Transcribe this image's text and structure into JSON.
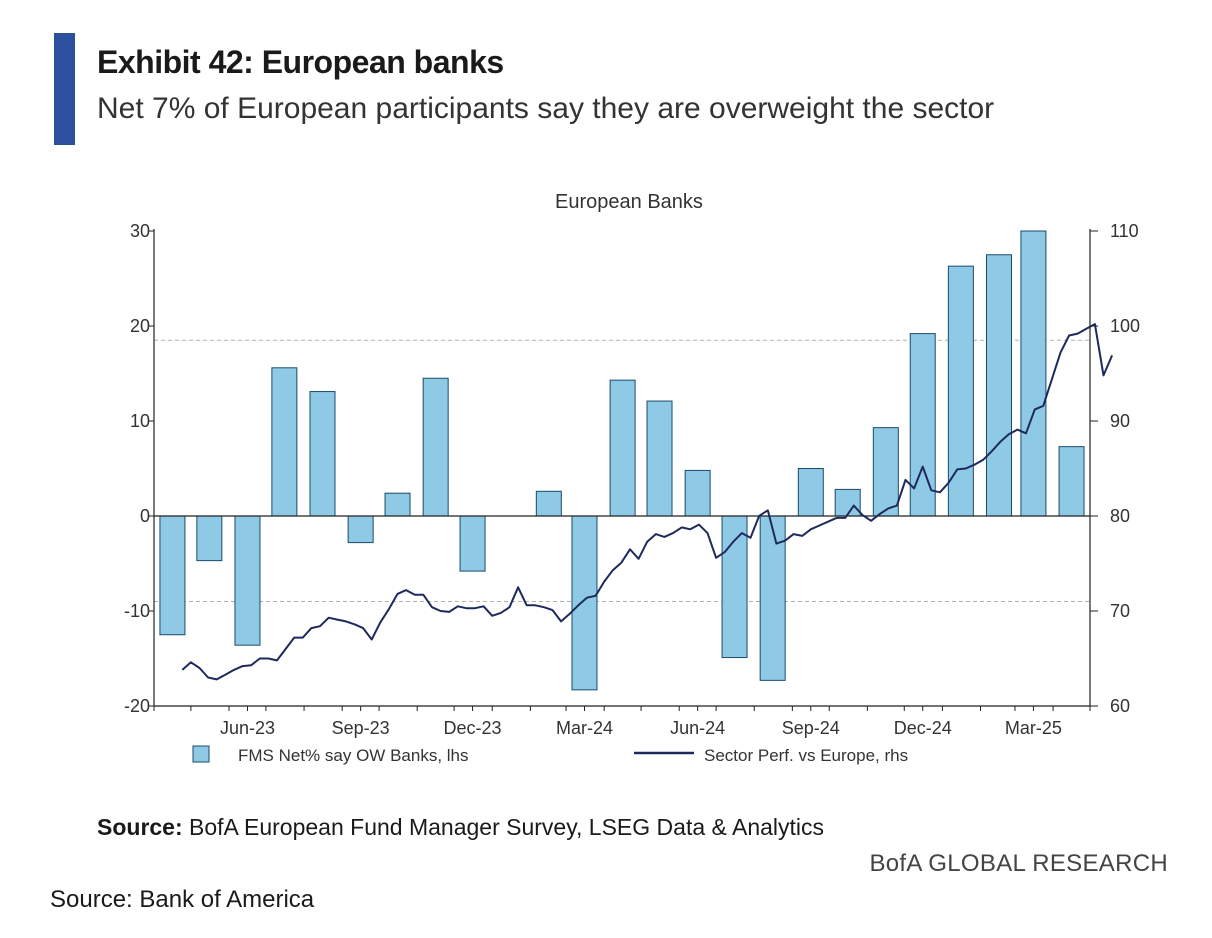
{
  "exhibit": {
    "title": "Exhibit 42: European banks",
    "subtitle": "Net 7% of European participants say they are overweight the sector"
  },
  "source": {
    "label": "Source:",
    "text": "BofA European Fund Manager Survey, LSEG Data & Analytics"
  },
  "brand": "BofA GLOBAL RESEARCH",
  "bottom_source": "Source: Bank of America",
  "colors": {
    "bar_fill": "#8ecae6",
    "bar_stroke": "#1b4a6b",
    "line": "#1f2a5c",
    "axis": "#222222",
    "reference": "#b0b0b0",
    "accent": "#2c4f9e"
  },
  "chart_data": {
    "type": "bar+line",
    "title": "European Banks",
    "x_tick_labels": [
      "Jun-23",
      "Sep-23",
      "Dec-23",
      "Mar-24",
      "Jun-24",
      "Sep-24",
      "Dec-24",
      "Mar-25"
    ],
    "left_axis": {
      "ylim": [
        -20,
        30
      ],
      "ticks": [
        -20,
        -10,
        0,
        10,
        20,
        30
      ],
      "tick_labels": [
        "-20",
        "-10",
        "0",
        "10",
        "20",
        "30"
      ]
    },
    "right_axis": {
      "ylim": [
        60,
        110
      ],
      "ticks": [
        60,
        70,
        80,
        90,
        100,
        110
      ],
      "tick_labels": [
        "60",
        "70",
        "80",
        "90",
        "100",
        "110"
      ]
    },
    "reference_lines_lhs": [
      18.5,
      -9.0
    ],
    "grid": false,
    "legend_position": "bottom",
    "bars": {
      "name": "FMS Net% say OW Banks, lhs",
      "axis": "left",
      "dates": [
        "2023-04",
        "2023-05",
        "2023-06",
        "2023-07",
        "2023-08",
        "2023-09",
        "2023-10",
        "2023-11",
        "2023-12",
        "2024-01",
        "2024-02",
        "2024-03",
        "2024-04",
        "2024-05",
        "2024-06",
        "2024-07",
        "2024-08",
        "2024-09",
        "2024-10",
        "2024-11",
        "2024-12",
        "2025-01",
        "2025-02",
        "2025-03",
        "2025-04"
      ],
      "values": [
        -12.5,
        -4.7,
        -13.6,
        15.6,
        13.1,
        -2.8,
        2.4,
        14.5,
        -5.8,
        0,
        2.6,
        -18.3,
        14.3,
        12.1,
        4.8,
        -14.9,
        -17.3,
        5.0,
        2.8,
        9.3,
        19.2,
        26.3,
        27.5,
        30.0,
        7.3
      ]
    },
    "line": {
      "name": "Sector Perf. vs Europe, rhs",
      "axis": "right",
      "start_date": "2023-04-24",
      "step": "week",
      "values": [
        63.8,
        64.6,
        64.0,
        63.0,
        62.8,
        63.3,
        63.8,
        64.2,
        64.3,
        65.0,
        65.0,
        64.8,
        66.0,
        67.2,
        67.2,
        68.2,
        68.4,
        69.3,
        69.1,
        68.9,
        68.6,
        68.2,
        67.0,
        68.8,
        70.2,
        71.8,
        72.2,
        71.7,
        71.7,
        70.4,
        70.0,
        69.9,
        70.5,
        70.3,
        70.3,
        70.5,
        69.5,
        69.8,
        70.4,
        72.5,
        70.6,
        70.6,
        70.4,
        70.1,
        68.9,
        69.7,
        70.6,
        71.4,
        71.6,
        73.1,
        74.3,
        75.1,
        76.5,
        75.5,
        77.3,
        78.1,
        77.8,
        78.2,
        78.8,
        78.6,
        79.1,
        78.2,
        75.6,
        76.2,
        77.3,
        78.2,
        77.7,
        80.0,
        80.6,
        77.1,
        77.4,
        78.1,
        77.9,
        78.6,
        79.0,
        79.4,
        79.8,
        79.8,
        81.1,
        80.1,
        79.5,
        80.2,
        80.8,
        81.1,
        83.8,
        82.9,
        85.2,
        82.7,
        82.5,
        83.5,
        84.9,
        85.0,
        85.4,
        85.9,
        86.8,
        87.8,
        88.6,
        89.1,
        88.7,
        91.2,
        91.6,
        94.4,
        97.2,
        99.0,
        99.2,
        99.7,
        100.2,
        94.8,
        96.9
      ]
    }
  }
}
